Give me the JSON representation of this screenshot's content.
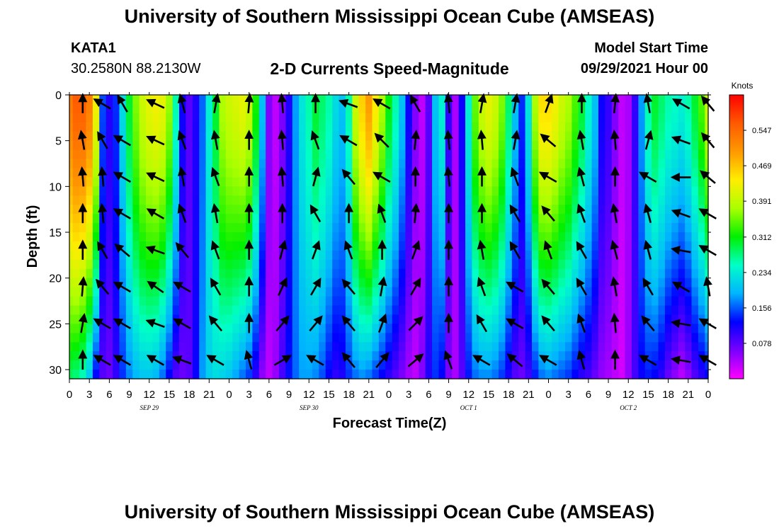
{
  "header": {
    "title": "University of Southern Mississippi Ocean Cube (AMSEAS)",
    "station_id": "KATA1",
    "coordinates": "30.2580N  88.2130W",
    "subtitle": "2-D Currents Speed-Magnitude",
    "start_time_label": "Model Start Time",
    "start_time_value": "09/29/2021 Hour 00"
  },
  "footer": {
    "title": "University of Southern Mississippi Ocean Cube (AMSEAS)"
  },
  "colorbar": {
    "unit": "Knots",
    "ticks": [
      "0.547",
      "0.469",
      "0.391",
      "0.312",
      "0.234",
      "0.156",
      "0.078"
    ],
    "range": [
      0,
      0.625
    ],
    "colors": [
      "#ff00ff",
      "#7a00ff",
      "#0000ff",
      "#00b4ff",
      "#00ffc8",
      "#00f000",
      "#aaff00",
      "#ffee00",
      "#ff9900",
      "#ff5a00",
      "#ff0000"
    ]
  },
  "chart_data": {
    "type": "heatmap",
    "title": "2-D Currents Speed-Magnitude",
    "xlabel": "Forecast Time(Z)",
    "ylabel": "Depth (ft)",
    "xlim": [
      0,
      96
    ],
    "ylim": [
      31,
      0
    ],
    "x_ticks": [
      "0",
      "3",
      "6",
      "9",
      "12",
      "15",
      "18",
      "21",
      "0",
      "3",
      "6",
      "9",
      "12",
      "15",
      "18",
      "21",
      "0",
      "3",
      "6",
      "9",
      "12",
      "15",
      "18",
      "21",
      "0",
      "3",
      "6",
      "9",
      "12",
      "15",
      "18",
      "21",
      "0"
    ],
    "y_ticks": [
      "0",
      "5",
      "10",
      "15",
      "20",
      "25",
      "30"
    ],
    "date_labels": [
      {
        "text": "SEP 29",
        "hour": 12
      },
      {
        "text": "SEP 30",
        "hour": 36
      },
      {
        "text": "OCT 1",
        "hour": 60
      },
      {
        "text": "OCT 2",
        "hour": 84
      }
    ],
    "speed_profile": {
      "hours": [
        0,
        1,
        2,
        3,
        4,
        5,
        6,
        7,
        8,
        9,
        10,
        11,
        12,
        13,
        14,
        15,
        16,
        17,
        18,
        19,
        20,
        21,
        22,
        23,
        24,
        25,
        26,
        27,
        28,
        29,
        30,
        31,
        32,
        33,
        34,
        35,
        36,
        37,
        38,
        39,
        40,
        41,
        42,
        43,
        44,
        45,
        46,
        47,
        48,
        49,
        50,
        51,
        52,
        53,
        54,
        55,
        56,
        57,
        58,
        59,
        60,
        61,
        62,
        63,
        64,
        65,
        66,
        67,
        68,
        69,
        70,
        71,
        72,
        73,
        74,
        75,
        76,
        77,
        78,
        79,
        80,
        81,
        82,
        83,
        84,
        85,
        86,
        87,
        88,
        89,
        90,
        91,
        92,
        93,
        94,
        95,
        96
      ],
      "surface_knots": [
        0.53,
        0.56,
        0.56,
        0.53,
        0.43,
        0.15,
        0.11,
        0.14,
        0.22,
        0.3,
        0.36,
        0.4,
        0.42,
        0.43,
        0.42,
        0.37,
        0.26,
        0.12,
        0.08,
        0.11,
        0.16,
        0.24,
        0.3,
        0.38,
        0.4,
        0.41,
        0.42,
        0.4,
        0.32,
        0.2,
        0.06,
        0.03,
        0.06,
        0.11,
        0.18,
        0.23,
        0.26,
        0.3,
        0.28,
        0.26,
        0.22,
        0.2,
        0.26,
        0.4,
        0.46,
        0.5,
        0.44,
        0.38,
        0.31,
        0.26,
        0.2,
        0.12,
        0.06,
        0.03,
        0.08,
        0.2,
        0.24,
        0.1,
        0.04,
        0.12,
        0.24,
        0.35,
        0.4,
        0.42,
        0.4,
        0.36,
        0.28,
        0.2,
        0.14,
        0.23,
        0.38,
        0.45,
        0.45,
        0.43,
        0.4,
        0.38,
        0.34,
        0.3,
        0.25,
        0.2,
        0.12,
        0.1,
        0.06,
        0.03,
        0.04,
        0.1,
        0.18,
        0.26,
        0.3,
        0.28,
        0.26,
        0.25,
        0.24,
        0.26,
        0.3,
        0.34,
        0.4
      ],
      "bottom_knots": [
        0.28,
        0.27,
        0.25,
        0.2,
        0.12,
        0.08,
        0.07,
        0.1,
        0.14,
        0.17,
        0.19,
        0.2,
        0.2,
        0.19,
        0.16,
        0.12,
        0.08,
        0.07,
        0.08,
        0.12,
        0.18,
        0.21,
        0.22,
        0.21,
        0.2,
        0.18,
        0.16,
        0.14,
        0.1,
        0.05,
        0.03,
        0.05,
        0.09,
        0.13,
        0.16,
        0.18,
        0.18,
        0.17,
        0.15,
        0.12,
        0.1,
        0.11,
        0.14,
        0.16,
        0.17,
        0.16,
        0.14,
        0.12,
        0.1,
        0.08,
        0.06,
        0.04,
        0.03,
        0.06,
        0.11,
        0.14,
        0.12,
        0.06,
        0.04,
        0.08,
        0.13,
        0.16,
        0.17,
        0.17,
        0.16,
        0.14,
        0.11,
        0.08,
        0.07,
        0.09,
        0.13,
        0.16,
        0.17,
        0.16,
        0.15,
        0.14,
        0.12,
        0.1,
        0.09,
        0.07,
        0.05,
        0.04,
        0.03,
        0.02,
        0.05,
        0.09,
        0.12,
        0.13,
        0.12,
        0.1,
        0.07,
        0.05,
        0.03,
        0.05,
        0.08,
        0.1,
        0.12
      ]
    },
    "vectors": {
      "hours": [
        2,
        5,
        8,
        13,
        17,
        22,
        27,
        32,
        37,
        42,
        47,
        52,
        57,
        62,
        67,
        72,
        77,
        82,
        87,
        92,
        96
      ],
      "depths_ft": [
        1,
        5,
        9,
        13,
        17,
        21,
        25,
        29
      ],
      "direction_deg_cw_from_north": [
        [
          0,
          300,
          330,
          295,
          345,
          10,
          5,
          355,
          0,
          290,
          300,
          330,
          355,
          10,
          10,
          20,
          0,
          5,
          350,
          300,
          320
        ],
        [
          350,
          330,
          300,
          295,
          340,
          350,
          0,
          355,
          340,
          300,
          315,
          5,
          355,
          355,
          10,
          310,
          350,
          355,
          15,
          290,
          320
        ],
        [
          355,
          355,
          300,
          295,
          350,
          340,
          0,
          355,
          15,
          320,
          300,
          0,
          355,
          0,
          340,
          300,
          345,
          0,
          300,
          270,
          310
        ],
        [
          0,
          355,
          300,
          300,
          340,
          350,
          0,
          0,
          330,
          0,
          340,
          5,
          0,
          0,
          330,
          320,
          340,
          350,
          345,
          290,
          300
        ],
        [
          0,
          330,
          310,
          290,
          320,
          340,
          0,
          15,
          20,
          340,
          0,
          20,
          0,
          350,
          330,
          340,
          330,
          345,
          345,
          280,
          300
        ],
        [
          5,
          320,
          300,
          305,
          300,
          330,
          0,
          25,
          30,
          320,
          10,
          30,
          0,
          340,
          300,
          320,
          330,
          350,
          330,
          300,
          350
        ],
        [
          10,
          300,
          300,
          290,
          300,
          320,
          0,
          40,
          40,
          320,
          20,
          45,
          0,
          330,
          300,
          320,
          340,
          355,
          320,
          280,
          300
        ],
        [
          0,
          300,
          300,
          300,
          290,
          300,
          345,
          60,
          300,
          320,
          40,
          50,
          340,
          300,
          310,
          300,
          345,
          0,
          300,
          280,
          300
        ]
      ]
    }
  }
}
